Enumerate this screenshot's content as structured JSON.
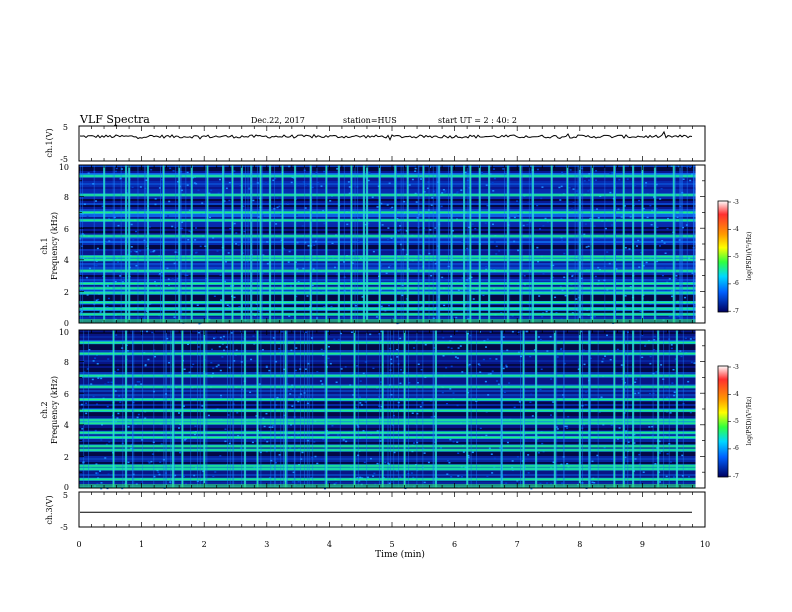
{
  "header": {
    "title": "VLF Spectra",
    "date": "Dec.22, 2017",
    "station": "station=HUS",
    "start_ut": "start  UT =  2 : 40: 2"
  },
  "chart_data": [
    {
      "type": "line",
      "panel": "ch1-waveform",
      "ylabel": "ch.1(V)",
      "ylim": [
        -5,
        5
      ],
      "yticks": [
        "5",
        "-5"
      ],
      "xlim": [
        0,
        10
      ],
      "series": [
        {
          "values": [
            2.0
          ]
        }
      ]
    },
    {
      "type": "heatmap",
      "panel": "ch1-spectrogram",
      "ylabel_1": "ch.1",
      "ylabel_2": "Frequency (kHz)",
      "ylim": [
        0,
        10
      ],
      "yticks": [
        "0",
        "2",
        "4",
        "6",
        "8",
        "10"
      ],
      "xlim": [
        0,
        9.85
      ],
      "bright_bands_khz": [
        0.55,
        0.9,
        1.3,
        1.9,
        2.2,
        2.5,
        3.3,
        4.0,
        4.2,
        5.5,
        6.5,
        7.0,
        8.1,
        9.3
      ],
      "vertical_bursts_min": [
        0.4,
        0.75,
        0.8,
        1.1,
        1.35,
        1.6,
        1.8,
        2.05,
        2.3,
        2.45,
        2.6,
        2.75,
        2.9,
        3.05,
        3.25,
        3.45,
        3.7,
        3.95,
        4.15,
        4.35,
        4.55,
        4.6,
        4.8,
        5.05,
        5.25,
        5.5,
        5.75,
        5.95,
        6.15,
        6.25,
        6.4,
        6.55,
        6.85,
        7.05,
        7.25,
        7.55,
        7.8,
        8.0,
        8.2,
        8.55,
        8.7,
        8.85,
        9.0,
        9.2,
        9.5
      ]
    },
    {
      "type": "heatmap",
      "panel": "ch2-spectrogram",
      "ylabel_1": "ch.2",
      "ylabel_2": "Frequency (kHz)",
      "ylim": [
        0,
        10
      ],
      "yticks": [
        "0",
        "2",
        "4",
        "6",
        "8",
        "10"
      ],
      "xlim": [
        0,
        9.85
      ],
      "bright_bands_khz": [
        0.55,
        1.2,
        1.4,
        2.4,
        2.65,
        3.2,
        3.5,
        4.1,
        4.3,
        4.9,
        5.6,
        6.4,
        7.1,
        8.5,
        9.2
      ],
      "vertical_bursts_min": [
        0.55,
        0.75,
        1.5,
        1.65,
        2.0,
        2.65,
        2.85,
        3.3,
        3.95,
        4.4,
        4.85,
        5.2,
        5.7,
        6.2,
        6.75,
        7.1,
        7.3,
        7.6,
        8.0,
        8.15,
        8.55,
        8.7,
        8.85,
        9.25,
        9.55
      ]
    },
    {
      "type": "line",
      "panel": "ch3-waveform",
      "ylabel": "ch.3(V)",
      "ylim": [
        -5,
        5
      ],
      "yticks": [
        "5",
        "-5"
      ],
      "xlim": [
        0,
        10
      ],
      "xlabel": "Time (min)",
      "xticks": [
        "0",
        "1",
        "2",
        "3",
        "4",
        "5",
        "6",
        "7",
        "8",
        "9",
        "10"
      ],
      "series": [
        {
          "values": [
            -0.8
          ]
        }
      ]
    }
  ],
  "colorbar": {
    "label": "log(PSD)(V²/Hz)",
    "ticks": [
      "-3",
      "-4",
      "-5",
      "-6",
      "-7"
    ],
    "colors": [
      "#ffffff",
      "#ff3030",
      "#ff9a00",
      "#ffff00",
      "#30ff40",
      "#00d8ff",
      "#0060ff",
      "#000060"
    ]
  }
}
